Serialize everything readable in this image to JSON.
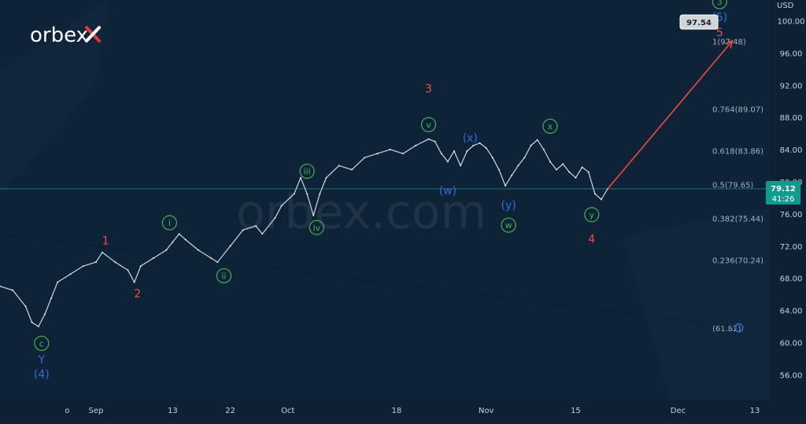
{
  "brand": {
    "logo_text": "orbex",
    "watermark": "orbex.com"
  },
  "price_axis": {
    "unit": "USD",
    "ticks": [
      "100.00",
      "96.00",
      "92.00",
      "88.00",
      "84.00",
      "80.00",
      "76.00",
      "72.00",
      "68.00",
      "64.00",
      "60.00",
      "56.00"
    ],
    "current_price": "79.12",
    "countdown": "41:26"
  },
  "time_axis": {
    "labels": [
      {
        "text": "o",
        "x_day": -4.5
      },
      {
        "text": "Sep",
        "x_day": 0
      },
      {
        "text": "13",
        "x_day": 12
      },
      {
        "text": "22",
        "x_day": 21
      },
      {
        "text": "Oct",
        "x_day": 30
      },
      {
        "text": "18",
        "x_day": 47
      },
      {
        "text": "Nov",
        "x_day": 61
      },
      {
        "text": "15",
        "x_day": 75
      },
      {
        "text": "Dec",
        "x_day": 91
      },
      {
        "text": "13",
        "x_day": 103
      }
    ]
  },
  "target_tag": "97.54",
  "fib_levels": [
    {
      "label": "1(97.48)",
      "y": 97.48
    },
    {
      "label": "0.764(89.07)",
      "y": 89.07
    },
    {
      "label": "0.618(83.86)",
      "y": 83.86
    },
    {
      "label": "0.5(79.65)",
      "y": 79.65
    },
    {
      "label": "0.382(75.44)",
      "y": 75.44
    },
    {
      "label": "0.236(70.24)",
      "y": 70.24
    },
    {
      "label": "(61.82)",
      "y": 61.82
    }
  ],
  "wave_labels": [
    {
      "text": "c",
      "style": "circle-green",
      "x_day": -8.5,
      "y": 59.9
    },
    {
      "text": "Y",
      "style": "blue",
      "x_day": -8.5,
      "y": 57.9
    },
    {
      "text": "(4)",
      "style": "blue",
      "x_day": -8.5,
      "y": 56.1
    },
    {
      "text": "1",
      "style": "red",
      "x_day": 1.5,
      "y": 72.7
    },
    {
      "text": "2",
      "style": "red",
      "x_day": 6.5,
      "y": 66.1
    },
    {
      "text": "i",
      "style": "circle-green",
      "x_day": 11.5,
      "y": 74.9
    },
    {
      "text": "ii",
      "style": "circle-green",
      "x_day": 20,
      "y": 68.3
    },
    {
      "text": "iii",
      "style": "circle-green",
      "x_day": 33,
      "y": 81.3
    },
    {
      "text": "iv",
      "style": "circle-green",
      "x_day": 34.5,
      "y": 74.3
    },
    {
      "text": "3",
      "style": "red",
      "x_day": 52,
      "y": 91.6
    },
    {
      "text": "v",
      "style": "circle-green",
      "x_day": 52,
      "y": 87.1
    },
    {
      "text": "(x)",
      "style": "blue",
      "x_day": 58.5,
      "y": 85.5
    },
    {
      "text": "(w)",
      "style": "blue",
      "x_day": 55,
      "y": 78.9
    },
    {
      "text": "(y)",
      "style": "blue",
      "x_day": 64.5,
      "y": 77.1
    },
    {
      "text": "w",
      "style": "circle-green",
      "x_day": 64.5,
      "y": 74.6
    },
    {
      "text": "x",
      "style": "circle-green",
      "x_day": 71,
      "y": 86.9
    },
    {
      "text": "y",
      "style": "circle-green",
      "x_day": 77.5,
      "y": 75.9
    },
    {
      "text": "4",
      "style": "red",
      "x_day": 77.5,
      "y": 72.9
    },
    {
      "text": "3",
      "style": "circle-green",
      "x_day": 97.5,
      "y": 102.4
    },
    {
      "text": "(5)",
      "style": "blue",
      "x_day": 97.5,
      "y": 100.5
    },
    {
      "text": "5",
      "style": "red",
      "x_day": 97.5,
      "y": 98.6
    }
  ],
  "chart_data": {
    "type": "line",
    "title": "",
    "xlabel": "",
    "ylabel": "USD",
    "ylim": [
      52.8,
      102.6
    ],
    "xlim": [
      -15,
      111
    ],
    "x_axis_note": "days from Sep 1",
    "series": [
      {
        "name": "",
        "x": [
          -15,
          -13,
          -11,
          -10,
          -9,
          -8,
          -7,
          -6,
          -4,
          -2,
          0,
          1,
          3,
          5,
          6,
          7,
          9,
          11,
          12,
          13,
          14,
          16,
          18,
          19,
          21,
          23,
          25,
          26,
          28,
          29,
          31,
          32,
          33,
          34,
          35,
          36,
          38,
          40,
          42,
          44,
          46,
          48,
          50,
          52,
          53,
          54,
          55,
          56,
          57,
          58,
          59,
          60,
          61,
          62,
          63,
          64,
          65,
          66,
          67,
          68,
          69,
          70,
          71,
          72,
          73,
          74,
          75,
          76,
          77,
          78,
          79,
          80
        ],
        "y": [
          67,
          66.5,
          64.5,
          62.5,
          62,
          63.5,
          65.5,
          67.5,
          68.5,
          69.5,
          70,
          71.2,
          70,
          69,
          67.5,
          69.5,
          70.5,
          71.5,
          72.5,
          73.5,
          72.8,
          71.5,
          70.5,
          70,
          72,
          74,
          74.5,
          73.5,
          75.5,
          77,
          78.5,
          80.5,
          78.5,
          75.8,
          78.5,
          80.5,
          82,
          81.5,
          83,
          83.5,
          84,
          83.5,
          84.5,
          85.3,
          85,
          83.5,
          82.5,
          83.8,
          82,
          83.8,
          84.5,
          84.8,
          84.2,
          83,
          81.5,
          79.5,
          80.8,
          82,
          83,
          84.5,
          85.2,
          84,
          82.5,
          81.5,
          82.2,
          81.2,
          80.5,
          81.8,
          81.2,
          78.5,
          77.8,
          79.12
        ]
      }
    ],
    "forecast": {
      "name": "",
      "x": [
        80,
        99.5
      ],
      "y": [
        79.12,
        97.54
      ]
    },
    "trendline": {
      "x": [
        -15,
        101
      ],
      "y": [
        73.5,
        61.82
      ]
    }
  }
}
